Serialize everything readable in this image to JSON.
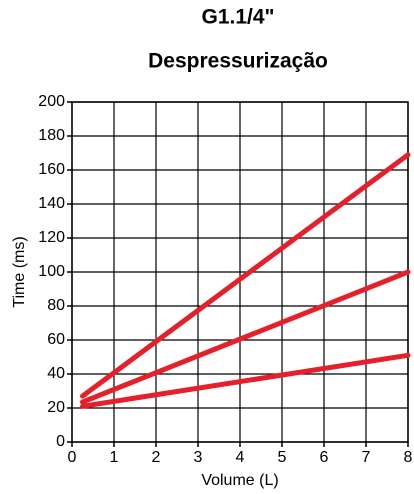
{
  "chart_data": {
    "type": "line",
    "title": "G1.1/4\"",
    "subtitle": "Despressurização",
    "x_label": "Volume (L)",
    "y_label": "Time (ms)",
    "x": [
      0.25,
      8
    ],
    "series": [
      {
        "color": "#e5202b",
        "values": [
          27,
          169
        ]
      },
      {
        "color": "#e5202b",
        "values": [
          23.5,
          100
        ]
      },
      {
        "color": "#e5202b",
        "values": [
          21,
          51
        ]
      }
    ],
    "xlim": [
      0,
      8
    ],
    "xticks": [
      0,
      1,
      2,
      3,
      4,
      5,
      6,
      7,
      8
    ],
    "ylim": [
      0,
      200
    ],
    "yticks": [
      0,
      20,
      40,
      60,
      80,
      100,
      120,
      140,
      160,
      180,
      200
    ],
    "grid": true
  }
}
